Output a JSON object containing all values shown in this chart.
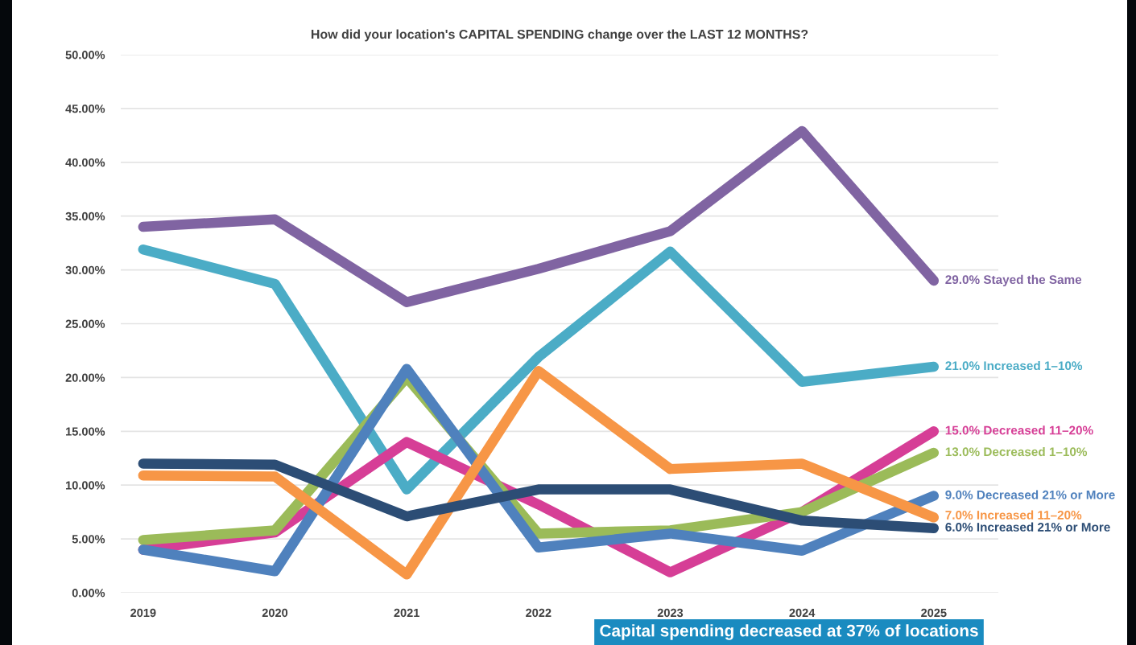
{
  "chart_data": {
    "type": "line",
    "title": "How did your location's CAPITAL SPENDING change over the LAST 12 MONTHS?",
    "categories": [
      "2019",
      "2020",
      "2021",
      "2022",
      "2023",
      "2024",
      "2025"
    ],
    "series": [
      {
        "name": "29.0% Stayed the Same",
        "color": "#8064a2",
        "values": [
          34.0,
          34.7,
          27.0,
          30.1,
          33.6,
          42.9,
          29.0
        ]
      },
      {
        "name": "21.0% Increased 1–10%",
        "color": "#4bacc6",
        "values": [
          31.9,
          28.7,
          9.6,
          21.9,
          31.7,
          19.6,
          21.0
        ]
      },
      {
        "name": "15.0% Decreased 11–20%",
        "color": "#d63e96",
        "values": [
          4.0,
          5.6,
          14.0,
          8.2,
          1.9,
          7.5,
          15.0
        ]
      },
      {
        "name": "13.0% Decreased 1–10%",
        "color": "#9bbb59",
        "values": [
          4.9,
          5.8,
          20.0,
          5.5,
          5.8,
          7.5,
          13.0
        ]
      },
      {
        "name": "9.0% Decreased 21% or More",
        "color": "#4f81bd",
        "values": [
          4.0,
          2.0,
          20.8,
          4.2,
          5.5,
          3.9,
          9.0
        ]
      },
      {
        "name": "7.0% Increased 11–20%",
        "color": "#f79646",
        "values": [
          10.9,
          10.8,
          1.7,
          20.6,
          11.5,
          12.0,
          7.0
        ]
      },
      {
        "name": "6.0% Increased 21% or More",
        "color": "#2c4d75",
        "values": [
          12.0,
          11.9,
          7.1,
          9.6,
          9.6,
          6.7,
          6.0
        ]
      }
    ],
    "ylim": [
      0,
      50
    ],
    "yticks": [
      {
        "value": 0,
        "label": "0.00%"
      },
      {
        "value": 5,
        "label": "5.00%"
      },
      {
        "value": 10,
        "label": "10.00%"
      },
      {
        "value": 15,
        "label": "15.00%"
      },
      {
        "value": 20,
        "label": "20.00%"
      },
      {
        "value": 25,
        "label": "25.00%"
      },
      {
        "value": 30,
        "label": "30.00%"
      },
      {
        "value": 35,
        "label": "35.00%"
      },
      {
        "value": 40,
        "label": "40.00%"
      },
      {
        "value": 45,
        "label": "45.00%"
      },
      {
        "value": 50,
        "label": "50.00%"
      }
    ],
    "grid": "y",
    "legend": false,
    "line_style": "solid",
    "annotations": [
      "Capital spending decreased at 37% of locations"
    ]
  }
}
